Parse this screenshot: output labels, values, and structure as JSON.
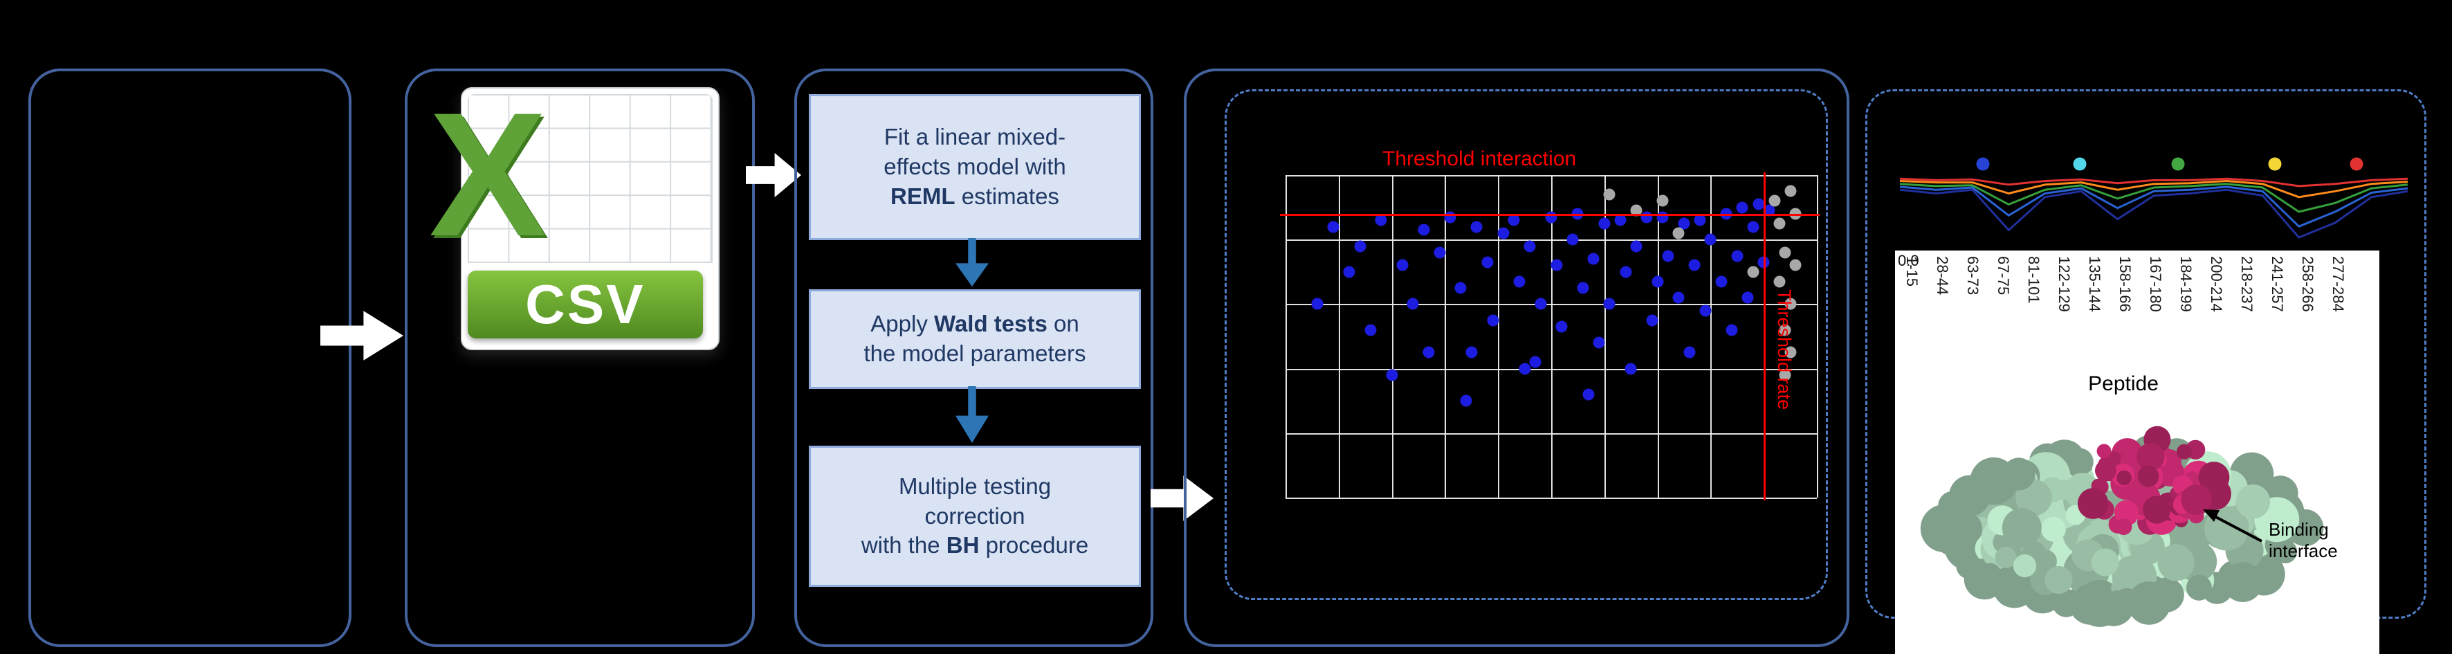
{
  "panels": {
    "csv_icon": {
      "letter": "X",
      "label": "CSV"
    },
    "model_steps": {
      "step1": {
        "pre": "Fit a linear mixed-\neffects model with\n",
        "bold": "REML",
        "post": " estimates"
      },
      "step2": {
        "pre": "Apply ",
        "bold": "Wald tests",
        "post": " on\nthe model parameters"
      },
      "step3": {
        "pre": "Multiple testing\ncorrection\nwith the ",
        "bold": "BH",
        "post": " procedure"
      }
    }
  },
  "chart_data": [
    {
      "type": "scatter",
      "title": "Threshold interaction",
      "rotated_axis_label": "Threshold rate",
      "grid": {
        "cols": 10,
        "rows": 5,
        "color": "#ededed"
      },
      "threshold_color": "#ff0000",
      "hline_y_pct": 12,
      "vline_x_pct": 90,
      "point_color_blue": "#1d1de2",
      "point_color_gray": "#a8a8a8",
      "points_blue": [
        [
          6,
          40
        ],
        [
          9,
          16
        ],
        [
          12,
          30
        ],
        [
          14,
          22
        ],
        [
          16,
          48
        ],
        [
          18,
          14
        ],
        [
          20,
          62
        ],
        [
          22,
          28
        ],
        [
          24,
          40
        ],
        [
          26,
          17
        ],
        [
          27,
          55
        ],
        [
          29,
          24
        ],
        [
          31,
          13
        ],
        [
          33,
          35
        ],
        [
          34,
          70
        ],
        [
          35,
          55
        ],
        [
          36,
          16
        ],
        [
          38,
          27
        ],
        [
          39,
          45
        ],
        [
          41,
          18
        ],
        [
          43,
          14
        ],
        [
          44,
          33
        ],
        [
          45,
          60
        ],
        [
          46,
          22
        ],
        [
          47,
          58
        ],
        [
          48,
          40
        ],
        [
          50,
          13
        ],
        [
          51,
          28
        ],
        [
          52,
          47
        ],
        [
          54,
          20
        ],
        [
          55,
          12
        ],
        [
          56,
          35
        ],
        [
          57,
          68
        ],
        [
          58,
          26
        ],
        [
          59,
          52
        ],
        [
          60,
          15
        ],
        [
          61,
          40
        ],
        [
          63,
          14
        ],
        [
          64,
          30
        ],
        [
          65,
          60
        ],
        [
          66,
          22
        ],
        [
          68,
          13
        ],
        [
          69,
          45
        ],
        [
          70,
          33
        ],
        [
          71,
          13
        ],
        [
          72,
          25
        ],
        [
          74,
          38
        ],
        [
          75,
          15
        ],
        [
          76,
          55
        ],
        [
          77,
          28
        ],
        [
          78,
          14
        ],
        [
          79,
          42
        ],
        [
          80,
          20
        ],
        [
          82,
          33
        ],
        [
          83,
          12
        ],
        [
          84,
          48
        ],
        [
          85,
          25
        ],
        [
          86,
          10
        ],
        [
          87,
          38
        ],
        [
          88,
          16
        ],
        [
          89,
          9
        ],
        [
          90,
          27
        ],
        [
          91,
          11
        ]
      ],
      "points_gray": [
        [
          61,
          6
        ],
        [
          66,
          11
        ],
        [
          71,
          8
        ],
        [
          74,
          18
        ],
        [
          88,
          30
        ],
        [
          92,
          8
        ],
        [
          93,
          15
        ],
        [
          94,
          24
        ],
        [
          93,
          33
        ],
        [
          95,
          40
        ],
        [
          94,
          48
        ],
        [
          95,
          55
        ],
        [
          96,
          12
        ],
        [
          96,
          28
        ],
        [
          95,
          5
        ],
        [
          94,
          62
        ]
      ]
    },
    {
      "type": "line",
      "xlabel": "Peptide",
      "first_y_tick": "0.0",
      "ylim": [
        0.0,
        1.0
      ],
      "x_labels": [
        "1-15",
        "28-44",
        "63-73",
        "67-75",
        "81-101",
        "122-129",
        "135-144",
        "158-166",
        "167-180",
        "184-199",
        "200-214",
        "218-237",
        "241-257",
        "258-266",
        "277-284"
      ],
      "legend_dot_colors": [
        "#2743d6",
        "#52d7e8",
        "#43a843",
        "#f3d737",
        "#e23232"
      ],
      "series": [
        {
          "color": "#20309c",
          "values": [
            0.8,
            0.75,
            0.8,
            0.25,
            0.7,
            0.78,
            0.4,
            0.72,
            0.75,
            0.8,
            0.72,
            0.15,
            0.35,
            0.7,
            0.78
          ]
        },
        {
          "color": "#2a63d4",
          "values": [
            0.84,
            0.8,
            0.83,
            0.45,
            0.75,
            0.82,
            0.55,
            0.78,
            0.8,
            0.84,
            0.78,
            0.3,
            0.5,
            0.76,
            0.82
          ]
        },
        {
          "color": "#35a03c",
          "values": [
            0.88,
            0.85,
            0.86,
            0.6,
            0.8,
            0.86,
            0.68,
            0.83,
            0.85,
            0.88,
            0.83,
            0.5,
            0.62,
            0.82,
            0.87
          ]
        },
        {
          "color": "#ff8c1a",
          "values": [
            0.92,
            0.9,
            0.9,
            0.75,
            0.87,
            0.9,
            0.8,
            0.88,
            0.89,
            0.92,
            0.88,
            0.7,
            0.78,
            0.88,
            0.91
          ]
        },
        {
          "color": "#e23232",
          "values": [
            0.95,
            0.93,
            0.94,
            0.87,
            0.92,
            0.94,
            0.89,
            0.93,
            0.93,
            0.95,
            0.92,
            0.85,
            0.88,
            0.93,
            0.95
          ]
        }
      ]
    }
  ],
  "protein": {
    "annotation": "Binding interface",
    "surface_color": "#a5cdb2",
    "interface_color": "#c2286d"
  }
}
